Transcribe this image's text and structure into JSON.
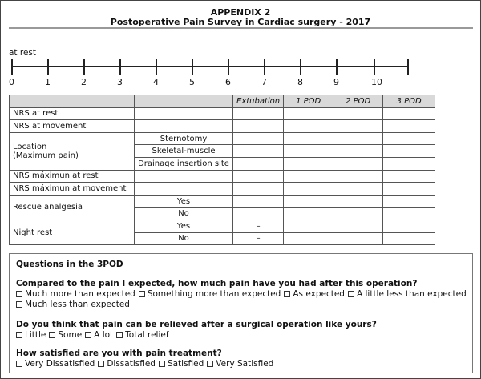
{
  "header": {
    "title": "APPENDIX 2",
    "subtitle": "Postoperative Pain Survey in Cardiac surgery - 2017"
  },
  "scale": {
    "label": "at rest",
    "ticks": [
      "0",
      "1",
      "2",
      "3",
      "4",
      "5",
      "6",
      "7",
      "8",
      "9",
      "10",
      ""
    ]
  },
  "table": {
    "columns": [
      "",
      "",
      "Extubation",
      "1 POD",
      "2 POD",
      "3 POD"
    ],
    "rows": {
      "nrs_rest": "NRS at rest",
      "nrs_move": "NRS at movement",
      "location": "Location",
      "location_sub": "(Maximum pain)",
      "loc_opts": [
        "Sternotomy",
        "Skeletal-muscle",
        "Drainage insertion site"
      ],
      "nrs_max_rest": "NRS máximun at rest",
      "nrs_max_move": "NRS máximun at  movement",
      "rescue": "Rescue analgesia",
      "night": "Night rest",
      "yes": "Yes",
      "no": "No",
      "dash": "–"
    }
  },
  "questions": {
    "heading": "Questions in the 3POD",
    "q1": "Compared to the pain I expected, how much pain have you had after this operation?",
    "q1_opts_a": [
      "Much more than expected",
      "Something more than expected",
      "As expected",
      "A little less than expected"
    ],
    "q1_opts_b": [
      "Much less than expected"
    ],
    "q2": "Do you think that pain can be relieved after a surgical operation like yours?",
    "q2_opts": [
      "Little",
      "Some",
      "A lot",
      "Total relief"
    ],
    "q3": "How satisfied are you with pain treatment?",
    "q3_opts": [
      "Very Dissatisfied",
      "Dissatisfied",
      "Satisfied",
      "Very Satisfied"
    ]
  }
}
